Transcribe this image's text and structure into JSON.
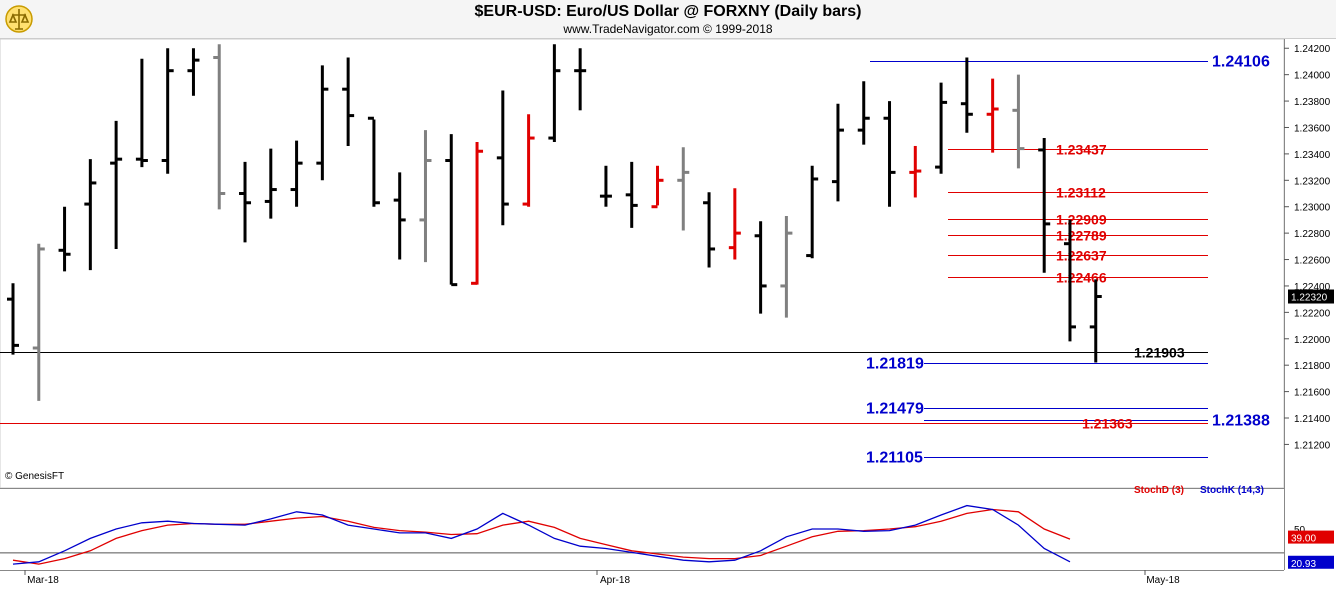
{
  "header": {
    "title": "$EUR-USD:  Euro/US Dollar @ FORXNY  (Daily bars)",
    "subtitle": "www.TradeNavigator.com © 1999-2018"
  },
  "watermark": "© GenesisFT",
  "colors": {
    "up": "#000000",
    "down": "#808080",
    "red": "#e00000",
    "blue": "#0000cc",
    "stochK": "#0000cc",
    "stochD": "#e00000"
  },
  "chart_data": {
    "type": "bar",
    "price_axis": {
      "range": [
        1.2087,
        1.2427
      ],
      "ticks": [
        "1.24200",
        "1.24000",
        "1.23800",
        "1.23600",
        "1.23400",
        "1.23200",
        "1.23000",
        "1.22800",
        "1.22600",
        "1.22400",
        "1.22200",
        "1.22000",
        "1.21800",
        "1.21600",
        "1.21400",
        "1.21200"
      ],
      "current_price": "1.22320"
    },
    "x_axis": {
      "labels": [
        "Mar-18",
        "Apr-18",
        "May-18"
      ]
    },
    "bars": [
      {
        "o": 1.223,
        "h": 1.2242,
        "l": 1.2188,
        "c": 1.2195,
        "col": "up"
      },
      {
        "o": 1.2193,
        "h": 1.2272,
        "l": 1.2153,
        "c": 1.2268,
        "col": "down"
      },
      {
        "o": 1.2267,
        "h": 1.23,
        "l": 1.2251,
        "c": 1.2264,
        "col": "up"
      },
      {
        "o": 1.2302,
        "h": 1.2336,
        "l": 1.2252,
        "c": 1.2318,
        "col": "up"
      },
      {
        "o": 1.2333,
        "h": 1.2365,
        "l": 1.2268,
        "c": 1.2336,
        "col": "up"
      },
      {
        "o": 1.2336,
        "h": 1.2412,
        "l": 1.233,
        "c": 1.2335,
        "col": "up"
      },
      {
        "o": 1.2335,
        "h": 1.242,
        "l": 1.2325,
        "c": 1.2403,
        "col": "up"
      },
      {
        "o": 1.2403,
        "h": 1.242,
        "l": 1.2384,
        "c": 1.2411,
        "col": "up"
      },
      {
        "o": 1.2413,
        "h": 1.2423,
        "l": 1.2298,
        "c": 1.231,
        "col": "down"
      },
      {
        "o": 1.231,
        "h": 1.2334,
        "l": 1.2273,
        "c": 1.2303,
        "col": "up"
      },
      {
        "o": 1.2304,
        "h": 1.2344,
        "l": 1.2291,
        "c": 1.2313,
        "col": "up"
      },
      {
        "o": 1.2313,
        "h": 1.235,
        "l": 1.23,
        "c": 1.2333,
        "col": "up"
      },
      {
        "o": 1.2333,
        "h": 1.2407,
        "l": 1.232,
        "c": 1.2389,
        "col": "up"
      },
      {
        "o": 1.2389,
        "h": 1.2413,
        "l": 1.2346,
        "c": 1.2369,
        "col": "up"
      },
      {
        "o": 1.2367,
        "h": 1.2366,
        "l": 1.23,
        "c": 1.2303,
        "col": "up"
      },
      {
        "o": 1.2305,
        "h": 1.2326,
        "l": 1.226,
        "c": 1.229,
        "col": "up"
      },
      {
        "o": 1.229,
        "h": 1.2358,
        "l": 1.2258,
        "c": 1.2335,
        "col": "down"
      },
      {
        "o": 1.2335,
        "h": 1.2355,
        "l": 1.2241,
        "c": 1.2241,
        "col": "up"
      },
      {
        "o": 1.2242,
        "h": 1.2349,
        "l": 1.2241,
        "c": 1.2342,
        "col": "red"
      },
      {
        "o": 1.2337,
        "h": 1.2388,
        "l": 1.2286,
        "c": 1.2302,
        "col": "up"
      },
      {
        "o": 1.2302,
        "h": 1.237,
        "l": 1.23,
        "c": 1.2352,
        "col": "red"
      },
      {
        "o": 1.2352,
        "h": 1.2423,
        "l": 1.2349,
        "c": 1.2403,
        "col": "up"
      },
      {
        "o": 1.2403,
        "h": 1.242,
        "l": 1.2373,
        "c": 1.2403,
        "col": "up"
      },
      {
        "o": 1.2308,
        "h": 1.2331,
        "l": 1.23,
        "c": 1.2308,
        "col": "up"
      },
      {
        "o": 1.2309,
        "h": 1.2334,
        "l": 1.2284,
        "c": 1.2301,
        "col": "up"
      },
      {
        "o": 1.23,
        "h": 1.2331,
        "l": 1.2301,
        "c": 1.232,
        "col": "red"
      },
      {
        "o": 1.232,
        "h": 1.2345,
        "l": 1.2282,
        "c": 1.2326,
        "col": "down"
      },
      {
        "o": 1.2303,
        "h": 1.2311,
        "l": 1.2254,
        "c": 1.2268,
        "col": "up"
      },
      {
        "o": 1.2269,
        "h": 1.2314,
        "l": 1.226,
        "c": 1.228,
        "col": "red"
      },
      {
        "o": 1.2278,
        "h": 1.2289,
        "l": 1.2219,
        "c": 1.224,
        "col": "up"
      },
      {
        "o": 1.224,
        "h": 1.2293,
        "l": 1.2216,
        "c": 1.228,
        "col": "down"
      },
      {
        "o": 1.2263,
        "h": 1.2331,
        "l": 1.2261,
        "c": 1.2321,
        "col": "up"
      },
      {
        "o": 1.2319,
        "h": 1.2378,
        "l": 1.2304,
        "c": 1.2358,
        "col": "up"
      },
      {
        "o": 1.2358,
        "h": 1.2395,
        "l": 1.2347,
        "c": 1.2367,
        "col": "up"
      },
      {
        "o": 1.2367,
        "h": 1.238,
        "l": 1.23,
        "c": 1.2326,
        "col": "up"
      },
      {
        "o": 1.2326,
        "h": 1.2346,
        "l": 1.2307,
        "c": 1.2327,
        "col": "red"
      },
      {
        "o": 1.233,
        "h": 1.2394,
        "l": 1.2325,
        "c": 1.2379,
        "col": "up"
      },
      {
        "o": 1.2378,
        "h": 1.2413,
        "l": 1.2356,
        "c": 1.237,
        "col": "up"
      },
      {
        "o": 1.237,
        "h": 1.2397,
        "l": 1.2341,
        "c": 1.2374,
        "col": "red"
      },
      {
        "o": 1.2373,
        "h": 1.24,
        "l": 1.2329,
        "c": 1.2344,
        "col": "down"
      },
      {
        "o": 1.2343,
        "h": 1.2352,
        "l": 1.225,
        "c": 1.2287,
        "col": "up"
      },
      {
        "o": 1.2272,
        "h": 1.229,
        "l": 1.2198,
        "c": 1.2209,
        "col": "up"
      },
      {
        "o": 1.2209,
        "h": 1.2245,
        "l": 1.2182,
        "c": 1.2232,
        "col": "up"
      }
    ],
    "levels": [
      {
        "label": "1.24106",
        "value": 1.24106,
        "color": "blue",
        "label_side": "right",
        "from": 870,
        "to": 1208
      },
      {
        "label": "1.23437",
        "value": 1.23437,
        "color": "red",
        "label_side": "right",
        "from": 948,
        "to": 1208
      },
      {
        "label": "1.23112",
        "value": 1.23112,
        "color": "red",
        "label_side": "right",
        "from": 948,
        "to": 1208
      },
      {
        "label": "1.22909",
        "value": 1.22909,
        "color": "red",
        "label_side": "right",
        "from": 948,
        "to": 1208
      },
      {
        "label": "1.22789",
        "value": 1.22789,
        "color": "red",
        "label_side": "right",
        "from": 948,
        "to": 1208
      },
      {
        "label": "1.22637",
        "value": 1.22637,
        "color": "red",
        "label_side": "right",
        "from": 948,
        "to": 1208
      },
      {
        "label": "1.22466",
        "value": 1.22466,
        "color": "red",
        "label_side": "right",
        "from": 948,
        "to": 1208
      },
      {
        "label": "1.21903",
        "value": 1.21903,
        "color": "black",
        "label_side": "far",
        "from": 0,
        "to": 1208
      },
      {
        "label": "1.21819",
        "value": 1.21819,
        "color": "blue",
        "label_side": "left",
        "from": 924,
        "to": 1208
      },
      {
        "label": "1.21479",
        "value": 1.21479,
        "color": "blue",
        "label_side": "left",
        "from": 924,
        "to": 1208
      },
      {
        "label": "1.21388",
        "value": 1.21388,
        "color": "blue",
        "label_side": "right",
        "from": 924,
        "to": 1208
      },
      {
        "label": "1.21363",
        "value": 1.21363,
        "color": "red",
        "label_side": "mid",
        "from": 0,
        "to": 1208
      },
      {
        "label": "1.21105",
        "value": 1.21105,
        "color": "blue",
        "label_side": "left",
        "from": 924,
        "to": 1208
      }
    ],
    "stochastic": {
      "legend_d": "StochD (3)",
      "legend_k": "StochK (14,3)",
      "axis_label": "50",
      "d_value": "39.00",
      "k_value": "20.93",
      "range": [
        0,
        100
      ],
      "k": [
        5,
        8,
        22,
        38,
        50,
        58,
        60,
        57,
        56,
        55,
        63,
        72,
        68,
        55,
        50,
        45,
        45,
        38,
        50,
        70,
        55,
        38,
        28,
        25,
        20,
        15,
        10,
        8,
        10,
        22,
        40,
        50,
        50,
        47,
        48,
        55,
        68,
        80,
        75,
        55,
        25,
        8
      ],
      "d": [
        10,
        5,
        12,
        22,
        38,
        48,
        55,
        57,
        56,
        56,
        60,
        64,
        66,
        60,
        52,
        48,
        46,
        43,
        44,
        55,
        60,
        52,
        38,
        30,
        22,
        18,
        14,
        12,
        12,
        16,
        28,
        40,
        47,
        48,
        50,
        53,
        60,
        70,
        75,
        72,
        50,
        37
      ]
    }
  }
}
